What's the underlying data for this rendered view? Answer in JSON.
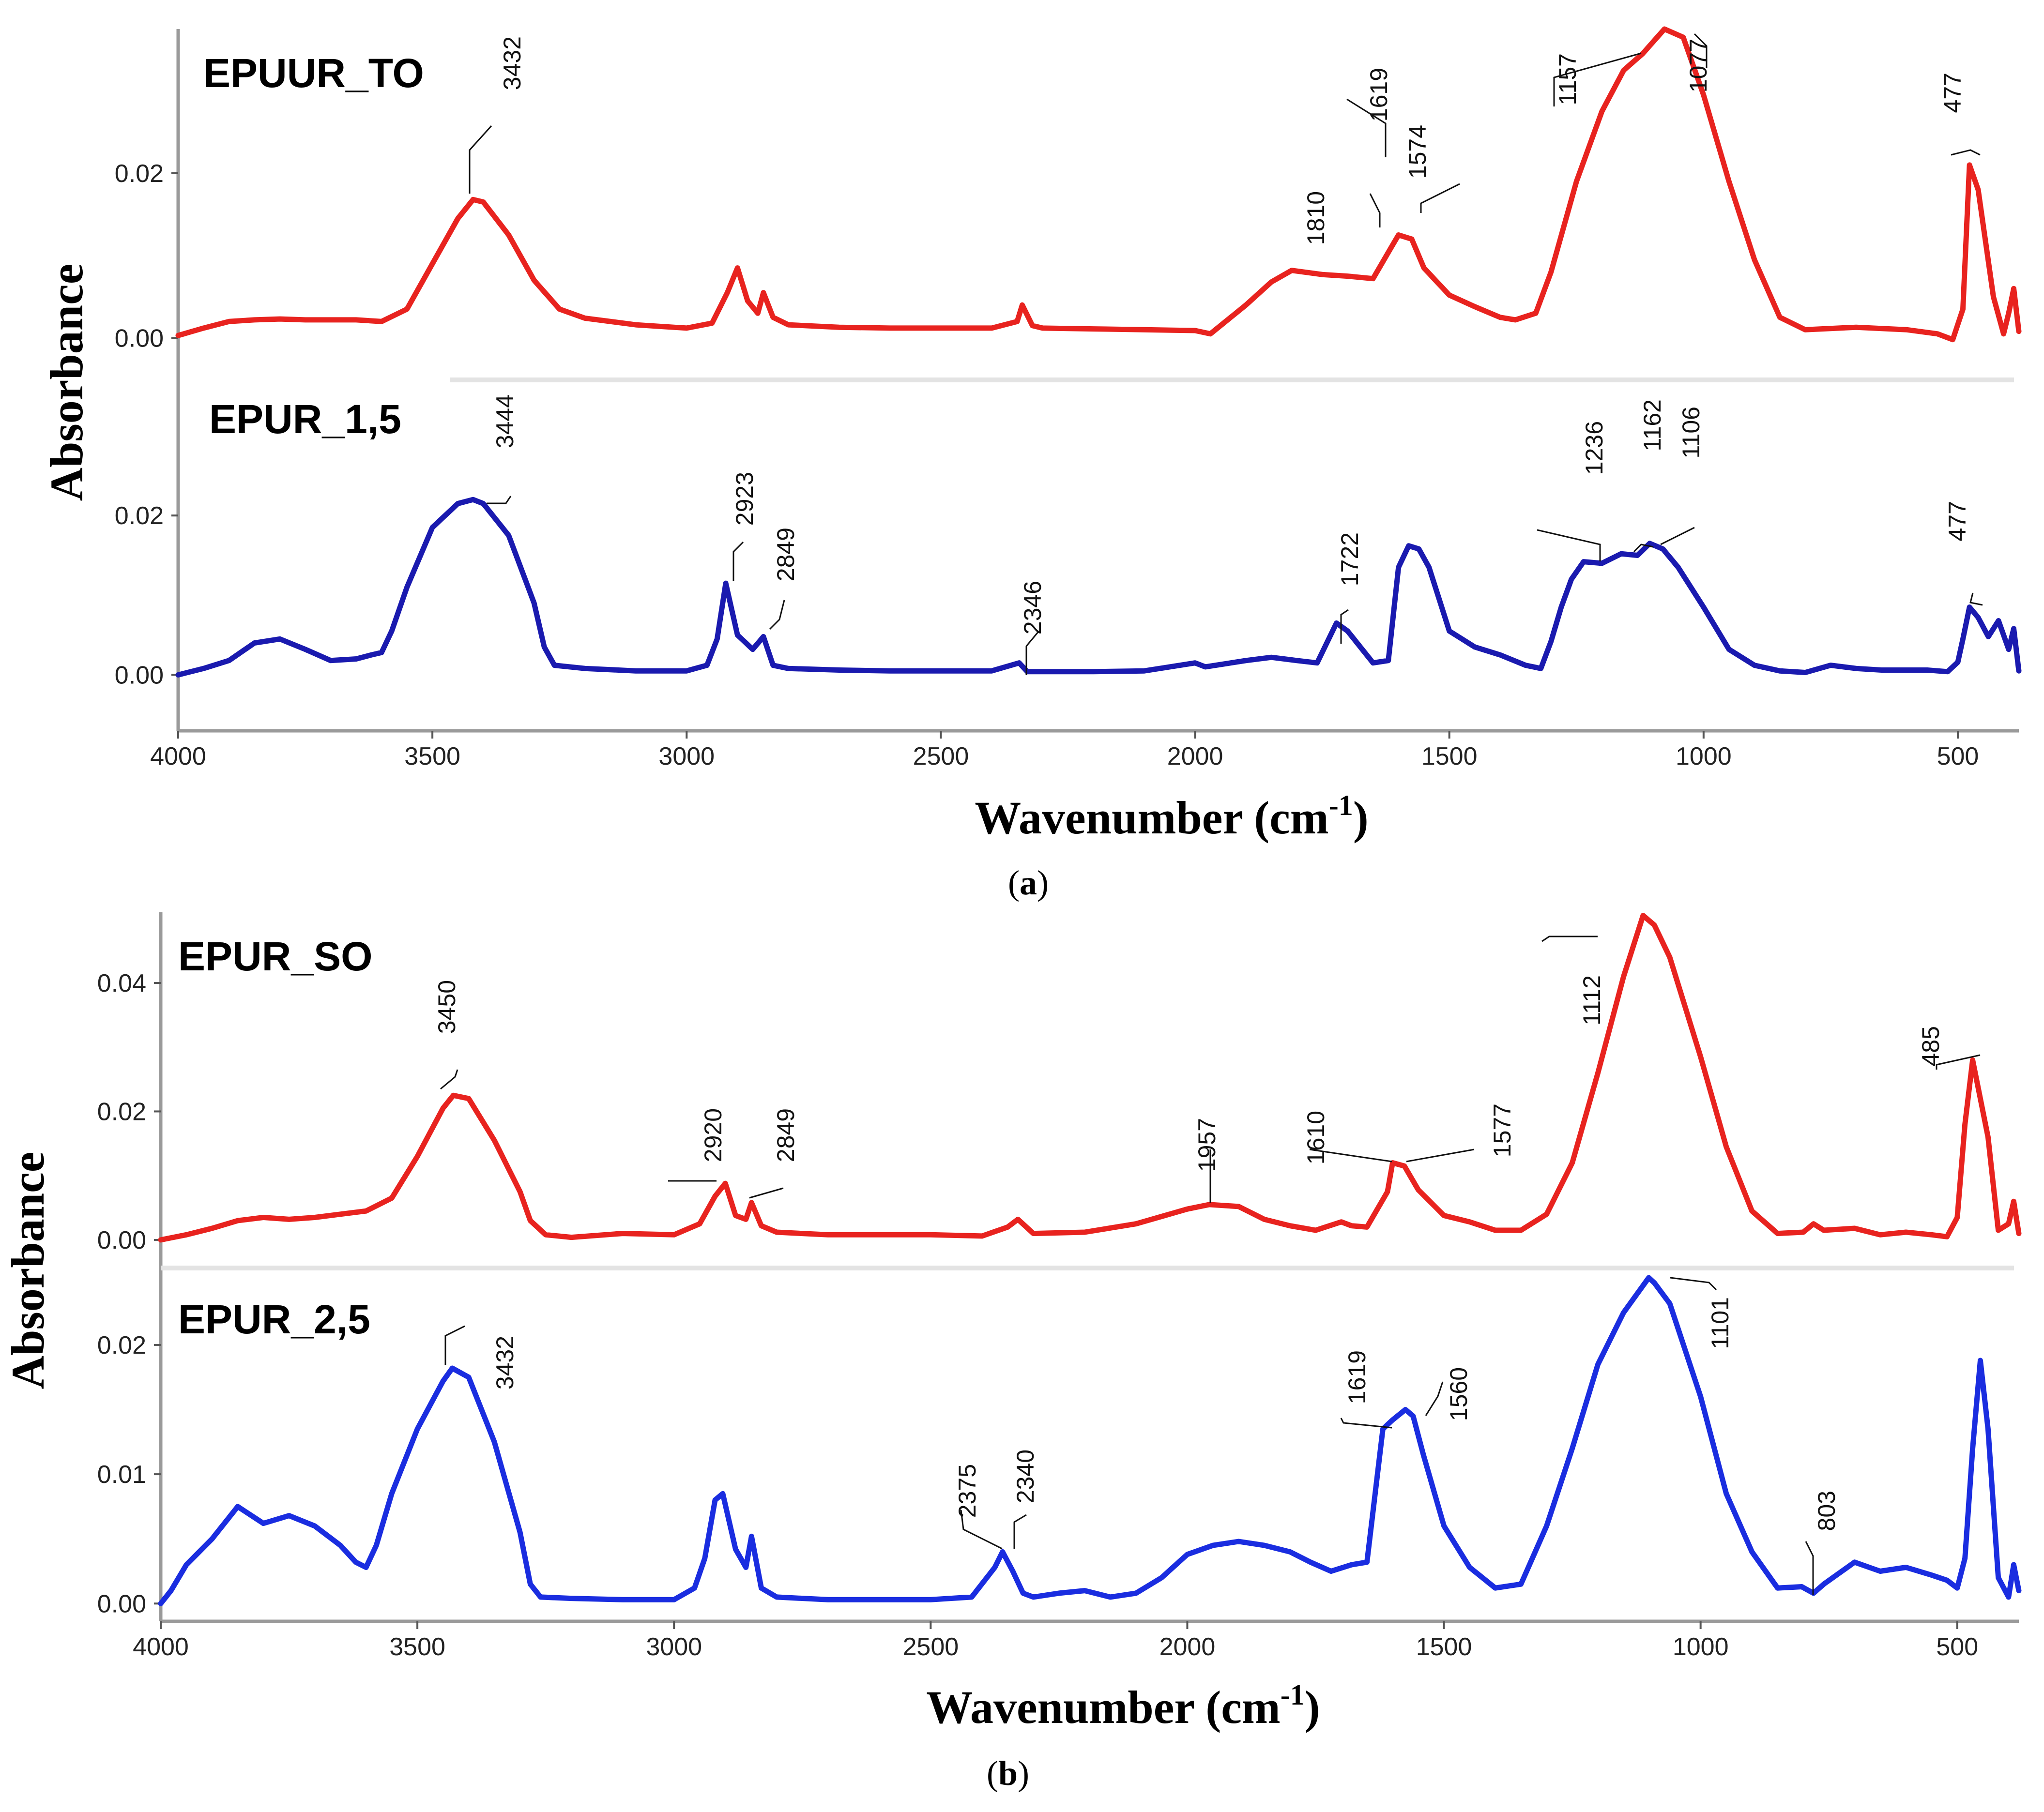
{
  "chart_data": [
    {
      "type": "line",
      "panel_label": "a",
      "xlabel": "Wavenumber (cm",
      "xlabel_sup": "-1",
      "xlabel_close": ")",
      "ylabel": "Absorbance",
      "xlim": [
        4000,
        380
      ],
      "xticks": [
        4000,
        3500,
        3000,
        2500,
        2000,
        1500,
        1000,
        500
      ],
      "series": [
        {
          "name": "EPUUR_TO",
          "color": "#e8231f",
          "ylim": [
            -0.0048,
            0.0375
          ],
          "yticks": [
            {
              "value": 0.0,
              "label": "0.00"
            },
            {
              "value": 0.02,
              "label": "0.02"
            }
          ],
          "x": [
            4000,
            3950,
            3900,
            3850,
            3800,
            3750,
            3700,
            3650,
            3600,
            3550,
            3500,
            3450,
            3420,
            3400,
            3350,
            3300,
            3250,
            3200,
            3100,
            3000,
            2950,
            2920,
            2900,
            2880,
            2860,
            2849,
            2830,
            2800,
            2700,
            2600,
            2500,
            2400,
            2350,
            2340,
            2320,
            2300,
            2200,
            2100,
            2000,
            1970,
            1900,
            1850,
            1810,
            1750,
            1700,
            1650,
            1619,
            1600,
            1574,
            1550,
            1500,
            1450,
            1400,
            1370,
            1330,
            1300,
            1250,
            1200,
            1157,
            1120,
            1077,
            1040,
            1000,
            950,
            900,
            850,
            800,
            700,
            600,
            540,
            510,
            490,
            477,
            460,
            430,
            410,
            400,
            390,
            380
          ],
          "y": [
            0.0003,
            0.0012,
            0.002,
            0.0022,
            0.0023,
            0.0022,
            0.0022,
            0.0022,
            0.002,
            0.0035,
            0.009,
            0.0145,
            0.0168,
            0.0165,
            0.0125,
            0.007,
            0.0035,
            0.0024,
            0.0016,
            0.0012,
            0.0018,
            0.0055,
            0.0085,
            0.0045,
            0.003,
            0.0055,
            0.0025,
            0.0016,
            0.0013,
            0.0012,
            0.0012,
            0.0012,
            0.002,
            0.004,
            0.0015,
            0.0012,
            0.0011,
            0.001,
            0.0009,
            0.0005,
            0.004,
            0.0068,
            0.0082,
            0.0077,
            0.0075,
            0.0072,
            0.0105,
            0.0125,
            0.012,
            0.0085,
            0.0052,
            0.0038,
            0.0025,
            0.0022,
            0.003,
            0.008,
            0.019,
            0.0275,
            0.0325,
            0.0345,
            0.0375,
            0.0365,
            0.0295,
            0.019,
            0.0095,
            0.0025,
            0.001,
            0.0013,
            0.001,
            0.0005,
            -0.0002,
            0.0035,
            0.021,
            0.018,
            0.005,
            0.0005,
            0.003,
            0.006,
            0.0008
          ]
        },
        {
          "name": "EPUR_1,5",
          "color": "#1a1aaf",
          "ylim": [
            -0.0052,
            0.0355
          ],
          "yticks": [
            {
              "value": 0.0,
              "label": "0.00"
            },
            {
              "value": 0.02,
              "label": "0.02"
            }
          ],
          "x": [
            4000,
            3950,
            3900,
            3850,
            3800,
            3750,
            3700,
            3650,
            3620,
            3600,
            3580,
            3550,
            3500,
            3450,
            3420,
            3400,
            3350,
            3300,
            3280,
            3260,
            3200,
            3100,
            3000,
            2960,
            2940,
            2923,
            2900,
            2870,
            2849,
            2830,
            2800,
            2700,
            2600,
            2500,
            2400,
            2346,
            2330,
            2300,
            2200,
            2100,
            2000,
            1980,
            1900,
            1850,
            1800,
            1760,
            1722,
            1700,
            1650,
            1620,
            1600,
            1580,
            1560,
            1540,
            1500,
            1450,
            1400,
            1350,
            1320,
            1300,
            1280,
            1260,
            1236,
            1200,
            1162,
            1130,
            1106,
            1080,
            1050,
            1000,
            950,
            900,
            850,
            800,
            750,
            700,
            650,
            600,
            560,
            520,
            500,
            490,
            477,
            460,
            440,
            420,
            400,
            390,
            380
          ],
          "y": [
            0.0,
            0.0008,
            0.0018,
            0.004,
            0.0045,
            0.0032,
            0.0018,
            0.002,
            0.0025,
            0.0028,
            0.0055,
            0.011,
            0.0185,
            0.0215,
            0.022,
            0.0215,
            0.0175,
            0.009,
            0.0035,
            0.0012,
            0.0008,
            0.0005,
            0.0005,
            0.0012,
            0.0045,
            0.0115,
            0.005,
            0.0032,
            0.0048,
            0.0012,
            0.0008,
            0.0006,
            0.0005,
            0.0005,
            0.0005,
            0.0015,
            0.0004,
            0.0004,
            0.0004,
            0.0005,
            0.0015,
            0.001,
            0.0018,
            0.0022,
            0.0018,
            0.0015,
            0.0065,
            0.0055,
            0.0015,
            0.0018,
            0.0135,
            0.0162,
            0.0158,
            0.0135,
            0.0055,
            0.0035,
            0.0025,
            0.0012,
            0.0008,
            0.0042,
            0.0085,
            0.012,
            0.0142,
            0.014,
            0.0152,
            0.015,
            0.0165,
            0.0158,
            0.0135,
            0.0085,
            0.0032,
            0.0012,
            0.0005,
            0.0003,
            0.0012,
            0.0008,
            0.0006,
            0.0006,
            0.0006,
            0.0004,
            0.0016,
            0.0045,
            0.0085,
            0.0072,
            0.0048,
            0.0068,
            0.0032,
            0.0058,
            0.0005
          ]
        }
      ],
      "annotations": [
        {
          "series": 0,
          "x": 3432,
          "label": "3432"
        },
        {
          "series": 0,
          "x": 1810,
          "label": "1810"
        },
        {
          "series": 0,
          "x": 1619,
          "label": "1619"
        },
        {
          "series": 0,
          "x": 1574,
          "label": "1574"
        },
        {
          "series": 0,
          "x": 1157,
          "label": "1157"
        },
        {
          "series": 0,
          "x": 1077,
          "label": "1077"
        },
        {
          "series": 0,
          "x": 477,
          "label": "477"
        },
        {
          "series": 1,
          "x": 3444,
          "label": "3444"
        },
        {
          "series": 1,
          "x": 2923,
          "label": "2923"
        },
        {
          "series": 1,
          "x": 2849,
          "label": "2849"
        },
        {
          "series": 1,
          "x": 2346,
          "label": "2346"
        },
        {
          "series": 1,
          "x": 1722,
          "label": "1722"
        },
        {
          "series": 1,
          "x": 1236,
          "label": "1236"
        },
        {
          "series": 1,
          "x": 1162,
          "label": "1162"
        },
        {
          "series": 1,
          "x": 1106,
          "label": "1106"
        },
        {
          "series": 1,
          "x": 477,
          "label": "477"
        }
      ]
    },
    {
      "type": "line",
      "panel_label": "b",
      "xlabel": "Wavenumber (cm",
      "xlabel_sup": "-1",
      "xlabel_close": ")",
      "ylabel": "Absorbance",
      "xlim": [
        4000,
        380
      ],
      "xticks": [
        4000,
        3500,
        3000,
        2500,
        2000,
        1500,
        1000,
        500
      ],
      "series": [
        {
          "name": "EPUR_SO",
          "color": "#e8231f",
          "ylim": [
            -0.004,
            0.051
          ],
          "yticks": [
            {
              "value": 0.0,
              "label": "0.00"
            },
            {
              "value": 0.02,
              "label": "0.02"
            },
            {
              "value": 0.04,
              "label": "0.04"
            }
          ],
          "x": [
            4000,
            3950,
            3900,
            3850,
            3800,
            3750,
            3700,
            3650,
            3600,
            3550,
            3500,
            3450,
            3430,
            3400,
            3350,
            3300,
            3280,
            3250,
            3200,
            3100,
            3000,
            2950,
            2920,
            2900,
            2880,
            2860,
            2849,
            2830,
            2800,
            2700,
            2600,
            2500,
            2400,
            2350,
            2330,
            2300,
            2200,
            2100,
            2000,
            1957,
            1900,
            1850,
            1800,
            1750,
            1700,
            1680,
            1650,
            1610,
            1600,
            1577,
            1550,
            1500,
            1450,
            1400,
            1350,
            1300,
            1250,
            1200,
            1150,
            1112,
            1090,
            1060,
            1000,
            950,
            900,
            850,
            800,
            780,
            760,
            700,
            650,
            600,
            550,
            520,
            500,
            485,
            470,
            440,
            420,
            400,
            390,
            380
          ],
          "y": [
            0.0,
            0.0008,
            0.0018,
            0.003,
            0.0035,
            0.0032,
            0.0035,
            0.004,
            0.0045,
            0.0065,
            0.013,
            0.0205,
            0.0225,
            0.022,
            0.0155,
            0.0075,
            0.003,
            0.0008,
            0.0004,
            0.001,
            0.0008,
            0.0025,
            0.0068,
            0.0088,
            0.0038,
            0.0032,
            0.0058,
            0.0022,
            0.0012,
            0.0008,
            0.0008,
            0.0008,
            0.0006,
            0.002,
            0.0032,
            0.001,
            0.0012,
            0.0025,
            0.0048,
            0.0055,
            0.0052,
            0.0032,
            0.0022,
            0.0015,
            0.0028,
            0.0022,
            0.002,
            0.0075,
            0.012,
            0.0115,
            0.0078,
            0.0038,
            0.0028,
            0.0015,
            0.0015,
            0.004,
            0.012,
            0.026,
            0.041,
            0.0505,
            0.049,
            0.044,
            0.0285,
            0.0145,
            0.0045,
            0.001,
            0.0012,
            0.0025,
            0.0015,
            0.0018,
            0.0008,
            0.0012,
            0.0008,
            0.0005,
            0.0035,
            0.018,
            0.028,
            0.016,
            0.0015,
            0.0025,
            0.006,
            0.001
          ]
        },
        {
          "name": "EPUR_2,5",
          "color": "#1a2de0",
          "ylim": [
            -0.001,
            0.0252
          ],
          "yticks": [
            {
              "value": 0.0,
              "label": "0.00"
            },
            {
              "value": 0.01,
              "label": "0.01"
            },
            {
              "value": 0.02,
              "label": "0.02"
            }
          ],
          "x": [
            4000,
            3980,
            3950,
            3900,
            3850,
            3800,
            3750,
            3700,
            3650,
            3620,
            3600,
            3580,
            3550,
            3500,
            3450,
            3432,
            3400,
            3350,
            3300,
            3280,
            3260,
            3200,
            3100,
            3000,
            2960,
            2940,
            2920,
            2905,
            2880,
            2860,
            2849,
            2830,
            2800,
            2700,
            2600,
            2500,
            2420,
            2375,
            2360,
            2340,
            2320,
            2300,
            2250,
            2200,
            2150,
            2100,
            2050,
            2000,
            1950,
            1900,
            1850,
            1800,
            1760,
            1720,
            1680,
            1650,
            1619,
            1600,
            1575,
            1560,
            1540,
            1500,
            1450,
            1400,
            1350,
            1300,
            1250,
            1200,
            1150,
            1101,
            1090,
            1060,
            1000,
            950,
            900,
            850,
            803,
            780,
            760,
            700,
            650,
            600,
            550,
            520,
            500,
            485,
            470,
            455,
            440,
            420,
            400,
            390,
            380
          ],
          "y": [
            0.0,
            0.001,
            0.003,
            0.005,
            0.0075,
            0.0062,
            0.0068,
            0.006,
            0.0045,
            0.0032,
            0.0028,
            0.0045,
            0.0085,
            0.0135,
            0.0172,
            0.0182,
            0.0175,
            0.0125,
            0.0055,
            0.0015,
            0.0005,
            0.0004,
            0.0003,
            0.0003,
            0.0012,
            0.0035,
            0.008,
            0.0085,
            0.0042,
            0.0028,
            0.0052,
            0.0012,
            0.0005,
            0.0003,
            0.0003,
            0.0003,
            0.0005,
            0.0028,
            0.004,
            0.0025,
            0.0008,
            0.0005,
            0.0008,
            0.001,
            0.0005,
            0.0008,
            0.002,
            0.0038,
            0.0045,
            0.0048,
            0.0045,
            0.004,
            0.0032,
            0.0025,
            0.003,
            0.0032,
            0.0135,
            0.0142,
            0.015,
            0.0145,
            0.0115,
            0.006,
            0.0028,
            0.0012,
            0.0015,
            0.006,
            0.012,
            0.0185,
            0.0225,
            0.0252,
            0.0248,
            0.0232,
            0.016,
            0.0085,
            0.004,
            0.0012,
            0.0013,
            0.0008,
            0.0015,
            0.0032,
            0.0025,
            0.0028,
            0.0022,
            0.0018,
            0.0012,
            0.0035,
            0.012,
            0.0188,
            0.0135,
            0.002,
            0.0005,
            0.003,
            0.001
          ]
        }
      ],
      "annotations": [
        {
          "series": 0,
          "x": 3450,
          "label": "3450"
        },
        {
          "series": 0,
          "x": 2920,
          "label": "2920"
        },
        {
          "series": 0,
          "x": 2849,
          "label": "2849"
        },
        {
          "series": 0,
          "x": 1957,
          "label": "1957"
        },
        {
          "series": 0,
          "x": 1610,
          "label": "1610"
        },
        {
          "series": 0,
          "x": 1577,
          "label": "1577"
        },
        {
          "series": 0,
          "x": 1112,
          "label": "1112"
        },
        {
          "series": 0,
          "x": 485,
          "label": "485"
        },
        {
          "series": 1,
          "x": 3432,
          "label": "3432"
        },
        {
          "series": 1,
          "x": 2375,
          "label": "2375"
        },
        {
          "series": 1,
          "x": 2340,
          "label": "2340"
        },
        {
          "series": 1,
          "x": 1619,
          "label": "1619"
        },
        {
          "series": 1,
          "x": 1560,
          "label": "1560"
        },
        {
          "series": 1,
          "x": 1101,
          "label": "1101"
        },
        {
          "series": 1,
          "x": 803,
          "label": "803"
        }
      ]
    }
  ]
}
